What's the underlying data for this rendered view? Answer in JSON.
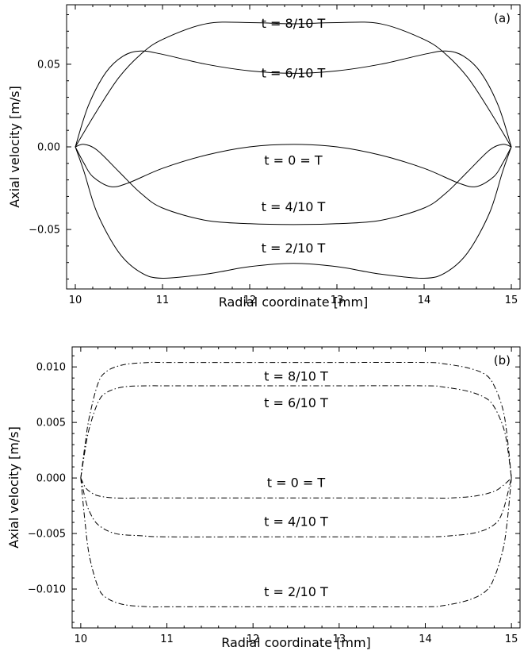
{
  "chart_data": [
    {
      "panel": "(a)",
      "type": "line",
      "title": "",
      "xlabel": "Radial coordinate [mm]",
      "ylabel": "Axial velocity [m/s]",
      "xlim": [
        9.9,
        15.1
      ],
      "ylim": [
        -0.086,
        0.086
      ],
      "xticks": [
        10,
        11,
        12,
        13,
        14,
        15
      ],
      "xtick_labels": [
        "10",
        "11",
        "12",
        "13",
        "14",
        "15"
      ],
      "yticks": [
        -0.05,
        0.0,
        0.05
      ],
      "ytick_labels": [
        "−0.05",
        "0.00",
        "0.05"
      ],
      "grid": false,
      "line_style": "solid",
      "series": [
        {
          "name": "t = 8/10 T",
          "label_at": [
            12.5,
            0.075
          ],
          "x": [
            10,
            10.25,
            10.5,
            10.75,
            11,
            11.5,
            12,
            12.5,
            13,
            13.5,
            14,
            14.25,
            14.5,
            14.75,
            15
          ],
          "y": [
            0.0,
            0.022,
            0.042,
            0.056,
            0.065,
            0.0745,
            0.0752,
            0.0745,
            0.0752,
            0.0745,
            0.065,
            0.056,
            0.042,
            0.022,
            0.0
          ]
        },
        {
          "name": "t = 6/10 T",
          "label_at": [
            12.5,
            0.045
          ],
          "x": [
            10,
            10.15,
            10.35,
            10.55,
            10.75,
            11,
            11.5,
            12,
            12.5,
            13,
            13.5,
            14,
            14.25,
            14.45,
            14.65,
            14.85,
            15
          ],
          "y": [
            0.0,
            0.025,
            0.045,
            0.055,
            0.058,
            0.056,
            0.05,
            0.046,
            0.0445,
            0.046,
            0.05,
            0.056,
            0.058,
            0.055,
            0.045,
            0.025,
            0.0
          ]
        },
        {
          "name": "t = 0 = T",
          "label_at": [
            12.5,
            -0.008
          ],
          "x": [
            10,
            10.1,
            10.2,
            10.4,
            10.6,
            11,
            11.5,
            12,
            12.5,
            13,
            13.5,
            14,
            14.4,
            14.6,
            14.8,
            14.9,
            15
          ],
          "y": [
            0.0,
            -0.01,
            -0.018,
            -0.024,
            -0.022,
            -0.013,
            -0.005,
            0.0,
            0.0015,
            0.0,
            -0.005,
            -0.013,
            -0.022,
            -0.024,
            -0.018,
            -0.01,
            0.0
          ]
        },
        {
          "name": "t = 4/10 T",
          "label_at": [
            12.5,
            -0.036
          ],
          "x": [
            10,
            10.1,
            10.25,
            10.5,
            10.75,
            11,
            11.5,
            12,
            12.5,
            13,
            13.5,
            14,
            14.25,
            14.5,
            14.75,
            14.9,
            15
          ],
          "y": [
            0.0,
            0.0015,
            -0.002,
            -0.015,
            -0.028,
            -0.037,
            -0.0445,
            -0.0465,
            -0.047,
            -0.0465,
            -0.0445,
            -0.037,
            -0.028,
            -0.015,
            -0.002,
            0.0015,
            0.0
          ]
        },
        {
          "name": "t = 2/10 T",
          "label_at": [
            12.5,
            -0.061
          ],
          "x": [
            10,
            10.1,
            10.25,
            10.5,
            10.75,
            11,
            11.5,
            12,
            12.5,
            13,
            13.5,
            14,
            14.25,
            14.5,
            14.75,
            14.9,
            15
          ],
          "y": [
            0.0,
            -0.015,
            -0.04,
            -0.064,
            -0.076,
            -0.0795,
            -0.077,
            -0.0725,
            -0.0705,
            -0.0725,
            -0.077,
            -0.0795,
            -0.076,
            -0.064,
            -0.04,
            -0.015,
            0.0
          ]
        }
      ]
    },
    {
      "panel": "(b)",
      "type": "line",
      "title": "",
      "xlabel": "Radial coordinate [mm]",
      "ylabel": "Axial velocity [m/s]",
      "xlim": [
        9.9,
        15.1
      ],
      "ylim": [
        -0.0135,
        0.0118
      ],
      "xticks": [
        10,
        11,
        12,
        13,
        14,
        15
      ],
      "xtick_labels": [
        "10",
        "11",
        "12",
        "13",
        "14",
        "15"
      ],
      "yticks": [
        -0.01,
        -0.005,
        0.0,
        0.005,
        0.01
      ],
      "ytick_labels": [
        "−0.010",
        "−0.005",
        "0.000",
        "0.005",
        "0.010"
      ],
      "grid": false,
      "line_style": "dash-dot",
      "series": [
        {
          "name": "t = 8/10 T",
          "label_at": [
            12.5,
            0.0092
          ],
          "x": [
            10,
            10.05,
            10.1,
            10.2,
            10.3,
            10.5,
            10.8,
            11,
            12,
            13,
            14,
            14.2,
            14.5,
            14.7,
            14.8,
            14.9,
            14.95,
            15
          ],
          "y": [
            0.0,
            0.003,
            0.0055,
            0.0085,
            0.0096,
            0.0102,
            0.0104,
            0.0104,
            0.0104,
            0.0104,
            0.0104,
            0.0103,
            0.0099,
            0.0093,
            0.0083,
            0.0062,
            0.0038,
            0.0
          ]
        },
        {
          "name": "t = 6/10 T",
          "label_at": [
            12.5,
            0.0068
          ],
          "x": [
            10,
            10.05,
            10.1,
            10.2,
            10.3,
            10.5,
            10.8,
            11,
            12,
            13,
            14,
            14.2,
            14.5,
            14.7,
            14.8,
            14.9,
            14.95,
            15
          ],
          "y": [
            0.0,
            0.0025,
            0.0045,
            0.0068,
            0.0077,
            0.0082,
            0.0083,
            0.0083,
            0.0083,
            0.0083,
            0.0083,
            0.0082,
            0.0078,
            0.0072,
            0.0064,
            0.0047,
            0.003,
            0.0
          ]
        },
        {
          "name": "t = 0 = T",
          "label_at": [
            12.5,
            -0.0004
          ],
          "x": [
            10,
            10.05,
            10.1,
            10.2,
            10.4,
            10.7,
            11,
            12,
            13,
            14,
            14.3,
            14.6,
            14.8,
            14.9,
            15
          ],
          "y": [
            0.0,
            -0.0008,
            -0.0012,
            -0.0016,
            -0.0018,
            -0.0018,
            -0.0018,
            -0.0018,
            -0.0018,
            -0.0018,
            -0.0018,
            -0.0016,
            -0.0012,
            -0.0007,
            0.0
          ]
        },
        {
          "name": "t = 4/10 T",
          "label_at": [
            12.5,
            -0.0039
          ],
          "x": [
            10,
            10.05,
            10.1,
            10.2,
            10.4,
            10.7,
            11,
            12,
            13,
            14,
            14.3,
            14.6,
            14.8,
            14.9,
            15
          ],
          "y": [
            0.0,
            -0.0018,
            -0.003,
            -0.0042,
            -0.005,
            -0.0052,
            -0.0053,
            -0.0053,
            -0.0053,
            -0.0053,
            -0.0052,
            -0.0049,
            -0.0042,
            -0.003,
            0.0
          ]
        },
        {
          "name": "t = 2/10 T",
          "label_at": [
            12.5,
            -0.0102
          ],
          "x": [
            10,
            10.05,
            10.1,
            10.2,
            10.3,
            10.5,
            10.8,
            11,
            12,
            13,
            14,
            14.2,
            14.5,
            14.7,
            14.8,
            14.9,
            14.95,
            15
          ],
          "y": [
            0.0,
            -0.004,
            -0.007,
            -0.0098,
            -0.0108,
            -0.0114,
            -0.0116,
            -0.0116,
            -0.0116,
            -0.0116,
            -0.0116,
            -0.0115,
            -0.011,
            -0.0102,
            -0.009,
            -0.0065,
            -0.004,
            0.0
          ]
        }
      ]
    }
  ]
}
